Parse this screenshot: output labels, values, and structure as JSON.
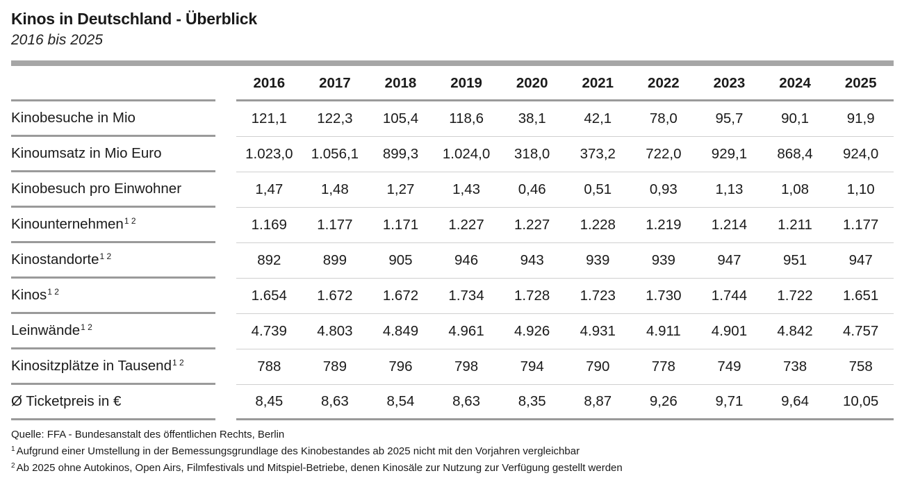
{
  "title": "Kinos in Deutschland - Überblick",
  "subtitle": "2016 bis 2025",
  "chart_data": {
    "type": "table",
    "columns": [
      "2016",
      "2017",
      "2018",
      "2019",
      "2020",
      "2021",
      "2022",
      "2023",
      "2024",
      "2025"
    ],
    "rows": [
      {
        "label": "Kinobesuche in Mio",
        "footnotes": "",
        "values": [
          "121,1",
          "122,3",
          "105,4",
          "118,6",
          "38,1",
          "42,1",
          "78,0",
          "95,7",
          "90,1",
          "91,9"
        ]
      },
      {
        "label": "Kinoumsatz in Mio Euro",
        "footnotes": "",
        "values": [
          "1.023,0",
          "1.056,1",
          "899,3",
          "1.024,0",
          "318,0",
          "373,2",
          "722,0",
          "929,1",
          "868,4",
          "924,0"
        ]
      },
      {
        "label": "Kinobesuch pro Einwohner",
        "footnotes": "",
        "values": [
          "1,47",
          "1,48",
          "1,27",
          "1,43",
          "0,46",
          "0,51",
          "0,93",
          "1,13",
          "1,08",
          "1,10"
        ]
      },
      {
        "label": "Kinounternehmen",
        "footnotes": "1 2",
        "values": [
          "1.169",
          "1.177",
          "1.171",
          "1.227",
          "1.227",
          "1.228",
          "1.219",
          "1.214",
          "1.211",
          "1.177"
        ]
      },
      {
        "label": "Kinostandorte",
        "footnotes": "1 2",
        "values": [
          "892",
          "899",
          "905",
          "946",
          "943",
          "939",
          "939",
          "947",
          "951",
          "947"
        ]
      },
      {
        "label": "Kinos",
        "footnotes": "1 2",
        "values": [
          "1.654",
          "1.672",
          "1.672",
          "1.734",
          "1.728",
          "1.723",
          "1.730",
          "1.744",
          "1.722",
          "1.651"
        ]
      },
      {
        "label": "Leinwände",
        "footnotes": "1 2",
        "values": [
          "4.739",
          "4.803",
          "4.849",
          "4.961",
          "4.926",
          "4.931",
          "4.911",
          "4.901",
          "4.842",
          "4.757"
        ]
      },
      {
        "label": "Kinositzplätze in Tausend",
        "footnotes": "1 2",
        "values": [
          "788",
          "789",
          "796",
          "798",
          "794",
          "790",
          "778",
          "749",
          "738",
          "758"
        ]
      },
      {
        "label": "Ø Ticketpreis in €",
        "footnotes": "",
        "values": [
          "8,45",
          "8,63",
          "8,54",
          "8,63",
          "8,35",
          "8,87",
          "9,26",
          "9,71",
          "9,64",
          "10,05"
        ]
      }
    ]
  },
  "notes": {
    "source": "Quelle: FFA - Bundesanstalt des öffentlichen Rechts, Berlin",
    "footnote1_mark": "1",
    "footnote1": "Aufgrund einer Umstellung in der Bemessungsgrundlage des Kinobestandes ab 2025 nicht mit den Vorjahren vergleichbar",
    "footnote2_mark": "2",
    "footnote2": "Ab 2025 ohne Autokinos, Open Airs, Filmfestivals und Mitspiel-Betriebe, denen Kinosäle zur Nutzung zur Verfügung gestellt werden"
  },
  "colors": {
    "rule_heavy": "#a6a6a6",
    "rule_row": "#cfcfcf",
    "text": "#1a1a1a"
  }
}
